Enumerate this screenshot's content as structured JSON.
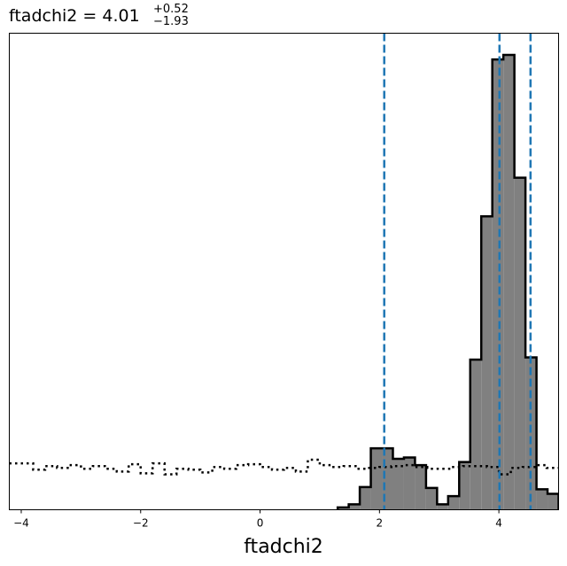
{
  "chart_data": {
    "type": "bar",
    "title": {
      "prefix": "ftadchi2 = 4.01",
      "upper": "+0.52",
      "lower": "−1.93"
    },
    "xlabel": "ftadchi2",
    "ylabel": "",
    "xlim": [
      -4.2,
      5.0
    ],
    "ylim": [
      0,
      1.0
    ],
    "xticks": [
      -4,
      -2,
      0,
      2,
      4
    ],
    "xtick_labels": [
      "−4",
      "−2",
      "0",
      "2",
      "4"
    ],
    "grid": false,
    "legend": "none",
    "histogram": {
      "bin_start": 1.3,
      "bin_width": 0.185,
      "values": [
        0.005,
        0.012,
        0.05,
        0.135,
        0.135,
        0.112,
        0.115,
        0.098,
        0.048,
        0.012,
        0.03,
        0.105,
        0.33,
        0.645,
        0.99,
        1.0,
        0.73,
        0.335,
        0.045,
        0.035
      ],
      "fill": "#808080",
      "edge": "#000000"
    },
    "prior": {
      "x": [
        -4.2,
        -4.0,
        -3.8,
        -3.6,
        -3.4,
        -3.2,
        -3.0,
        -2.8,
        -2.6,
        -2.4,
        -2.2,
        -2.0,
        -1.8,
        -1.6,
        -1.4,
        -1.2,
        -1.0,
        -0.8,
        -0.6,
        -0.4,
        -0.2,
        0.0,
        0.2,
        0.4,
        0.6,
        0.8,
        1.0,
        1.2,
        1.4,
        1.6,
        1.8,
        2.0,
        2.2,
        2.4,
        2.6,
        2.8,
        3.0,
        3.2,
        3.4,
        3.6,
        3.8,
        4.0,
        4.2,
        4.4,
        4.6,
        4.8,
        5.0
      ],
      "y": [
        0.102,
        0.102,
        0.088,
        0.096,
        0.092,
        0.098,
        0.09,
        0.096,
        0.09,
        0.084,
        0.1,
        0.08,
        0.102,
        0.078,
        0.09,
        0.088,
        0.082,
        0.094,
        0.09,
        0.098,
        0.1,
        0.094,
        0.088,
        0.092,
        0.084,
        0.11,
        0.098,
        0.094,
        0.096,
        0.09,
        0.092,
        0.094,
        0.096,
        0.098,
        0.094,
        0.09,
        0.09,
        0.094,
        0.096,
        0.096,
        0.094,
        0.078,
        0.092,
        0.094,
        0.098,
        0.092,
        0.086
      ],
      "style": "dotted",
      "color": "#000000"
    },
    "vlines": {
      "x": [
        2.08,
        4.01,
        4.53
      ],
      "style": "dashed",
      "color": "#1f77b4"
    }
  }
}
